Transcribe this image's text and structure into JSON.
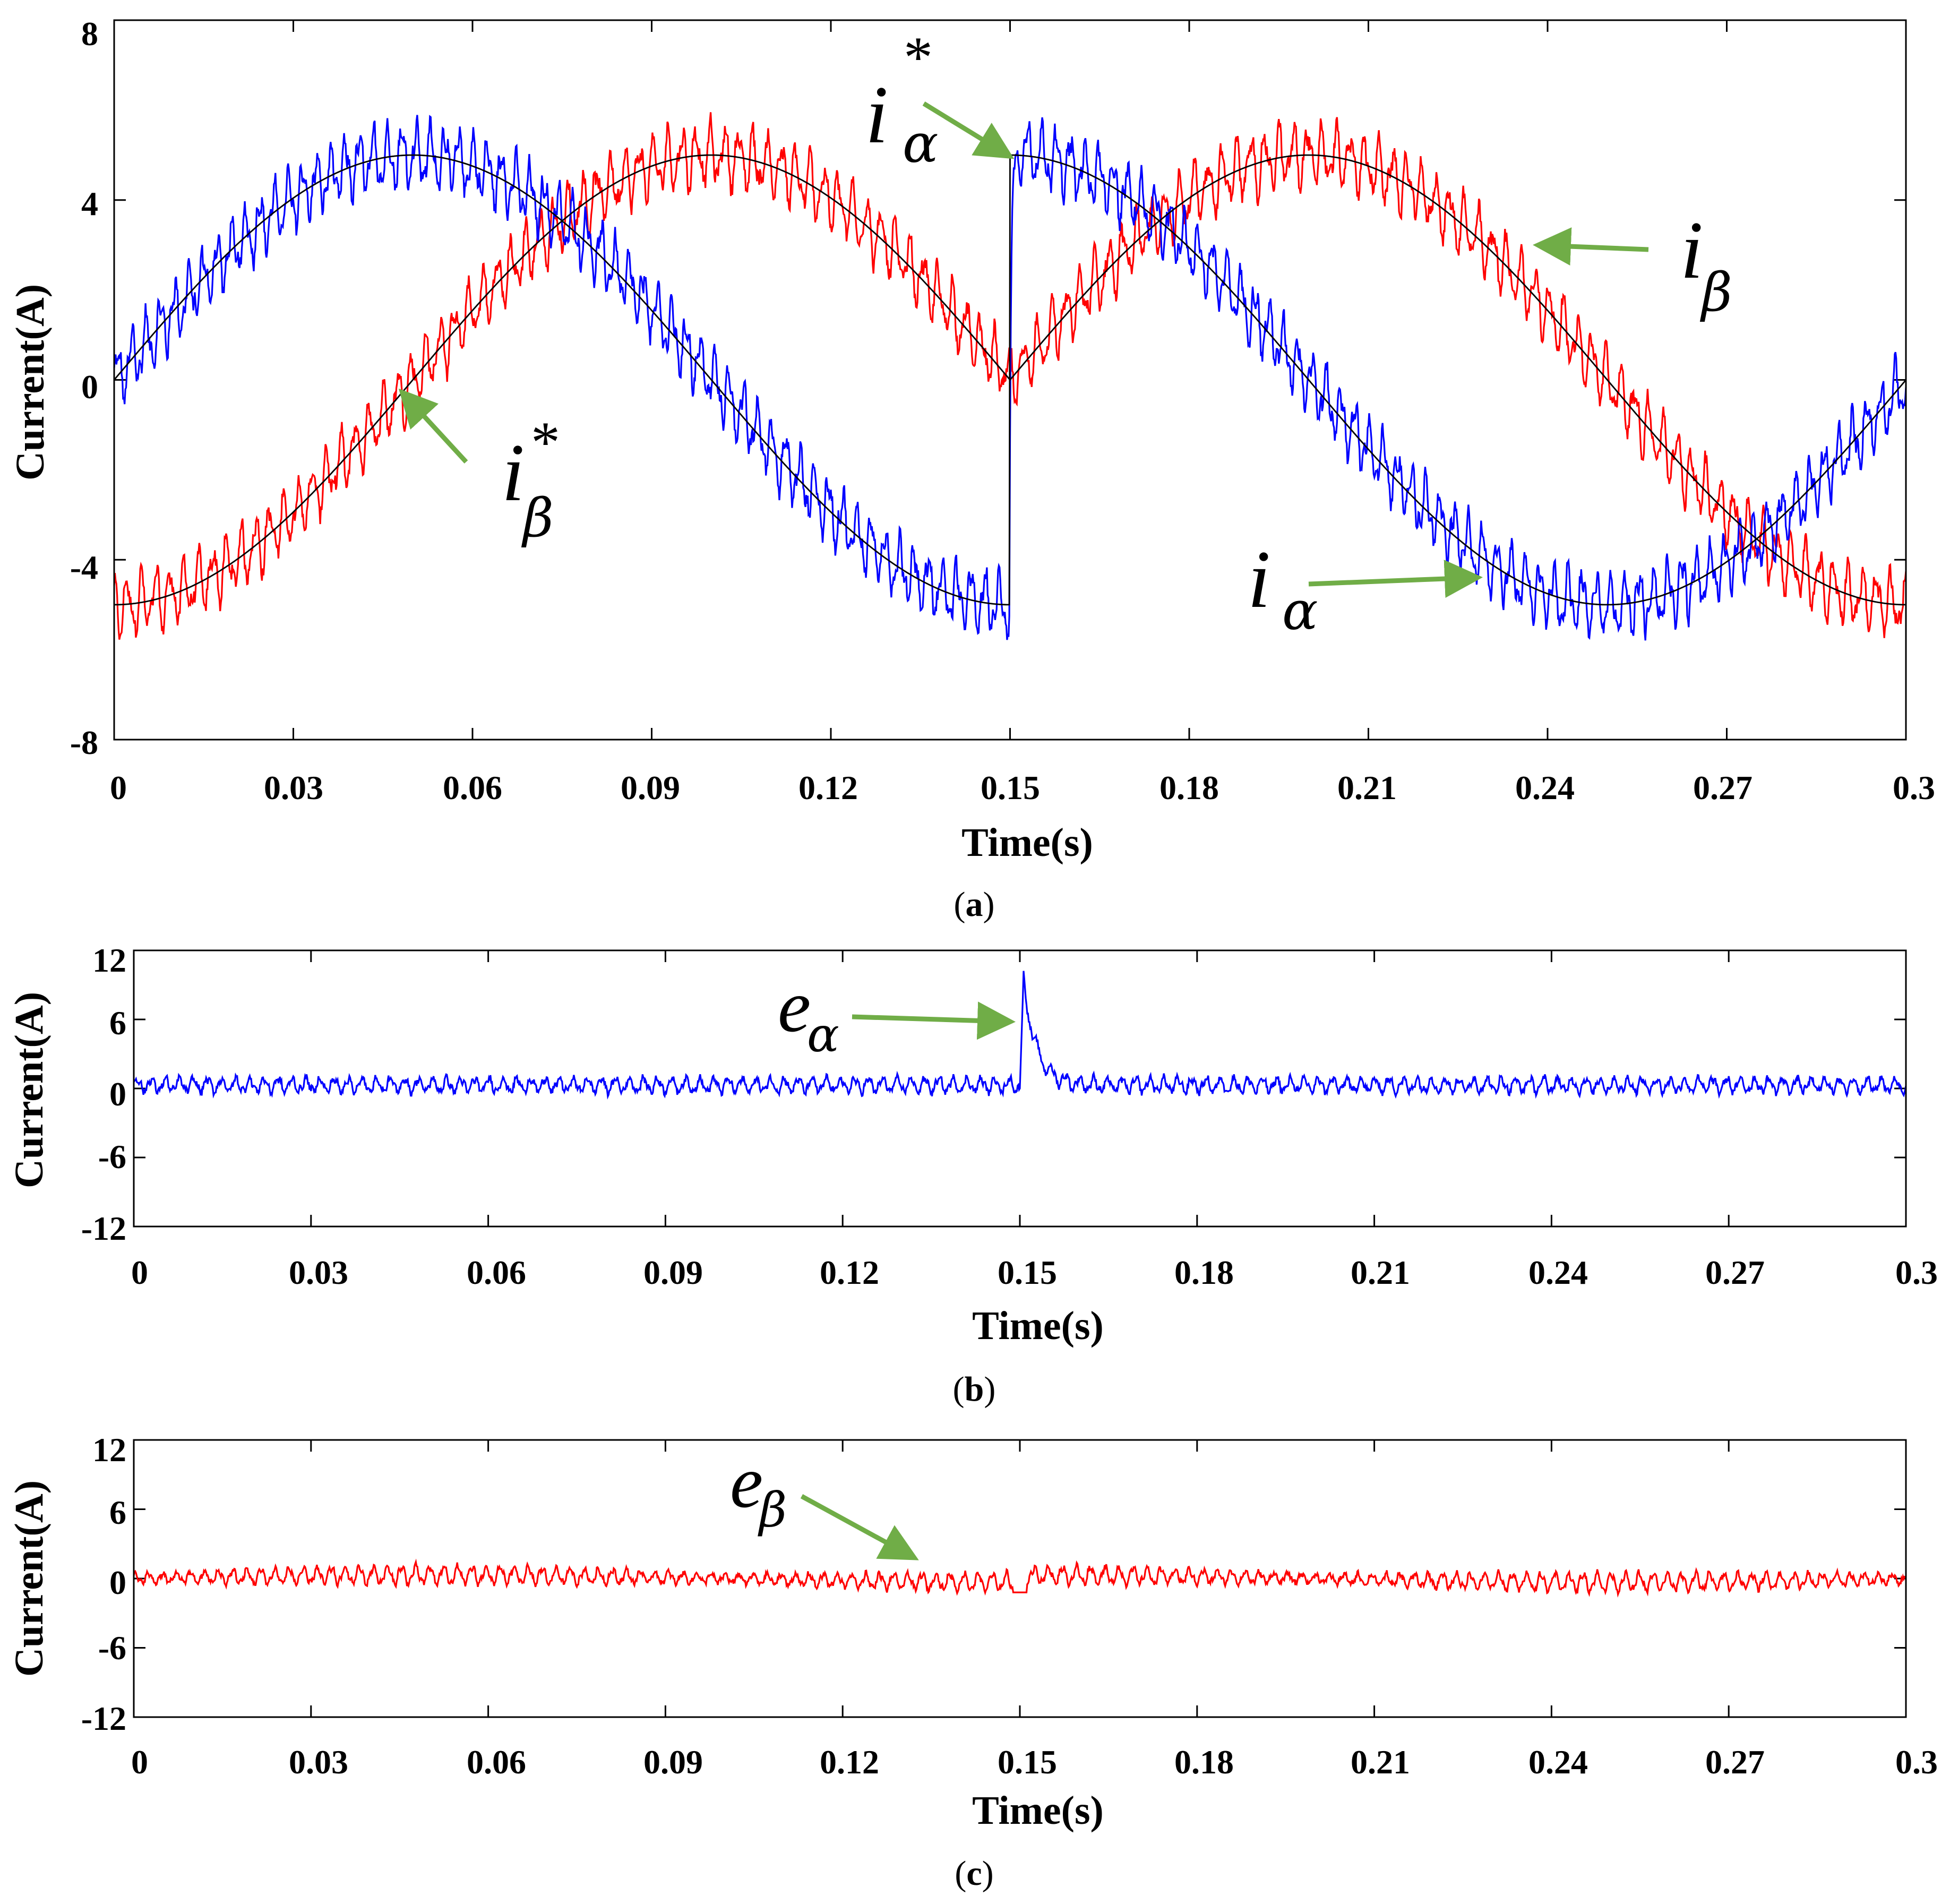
{
  "figure": {
    "panels": [
      {
        "caption_open": "(",
        "caption_letter": "a",
        "caption_close": ")"
      },
      {
        "caption_open": "(",
        "caption_letter": "b",
        "caption_close": ")"
      },
      {
        "caption_open": "(",
        "caption_letter": "c",
        "caption_close": ")"
      }
    ]
  },
  "colors": {
    "alpha": "#0000ff",
    "beta": "#ff0000",
    "reference": "#000000",
    "arrow": "#70ad47"
  },
  "chart_data": [
    {
      "type": "line",
      "title": "",
      "xlabel": "Time(s)",
      "ylabel": "Current(A)",
      "xlim": [
        0,
        0.3
      ],
      "ylim": [
        -8,
        8
      ],
      "xticks": [
        "0",
        "0.03",
        "0.06",
        "0.09",
        "0.12",
        "0.15",
        "0.18",
        "0.21",
        "0.24",
        "0.27",
        "0.3"
      ],
      "yticks": [
        "8",
        "4",
        "0",
        "-4",
        "-8"
      ],
      "signal": {
        "frequency_hz": 5,
        "amplitude_a": 5,
        "step_time_s": 0.15,
        "ripple_frequency_hz": 420
      },
      "series": [
        {
          "name": "i_alpha*",
          "label_main": "i",
          "label_sub": "α",
          "label_sup": "*",
          "color": "#000000",
          "description": "reference, 5 sin(2π·5t); sign inverts at t = 0.15 s (step from -5 to +5)"
        },
        {
          "name": "i_beta*",
          "label_main": "i",
          "label_sub": "β",
          "label_sup": "*",
          "color": "#000000",
          "description": "reference, |5 sin(2π·5t)| style, -5 at t=0, 5 at t=0.1, 0 at t=0.15, 5 at t=0.2, -5 at t=0.3"
        },
        {
          "name": "i_alpha",
          "label_main": "i",
          "label_sub": "α",
          "color": "#0000ff",
          "description": "measured current tracking i_alpha* with ripple about ±0.7 A"
        },
        {
          "name": "i_beta",
          "label_main": "i",
          "label_sub": "β",
          "color": "#ff0000",
          "description": "measured current tracking i_beta* with ripple about ±0.7 A"
        }
      ],
      "key_points": [
        {
          "t": 0,
          "i_alpha_ref": 0,
          "i_beta_ref": -5
        },
        {
          "t": 0.05,
          "i_alpha_ref": 5,
          "i_beta_ref": 0
        },
        {
          "t": 0.1,
          "i_alpha_ref": 0,
          "i_beta_ref": 5
        },
        {
          "t": 0.15,
          "i_alpha_ref": -5,
          "i_beta_ref": 0
        },
        {
          "t": 0.15,
          "i_alpha_ref": 5,
          "i_beta_ref": 0
        },
        {
          "t": 0.2,
          "i_alpha_ref": 0,
          "i_beta_ref": 5
        },
        {
          "t": 0.25,
          "i_alpha_ref": -5,
          "i_beta_ref": 0
        },
        {
          "t": 0.3,
          "i_alpha_ref": 0,
          "i_beta_ref": -5
        }
      ]
    },
    {
      "type": "line",
      "title": "",
      "xlabel": "Time(s)",
      "ylabel": "Current(A)",
      "xlim": [
        0,
        0.3
      ],
      "ylim": [
        -12,
        12
      ],
      "xticks": [
        "0",
        "0.03",
        "0.06",
        "0.09",
        "0.12",
        "0.15",
        "0.18",
        "0.21",
        "0.24",
        "0.27",
        "0.3"
      ],
      "yticks": [
        "12",
        "6",
        "0",
        "-6",
        "-12"
      ],
      "signal": {
        "peak_value_a": 9.5,
        "peak_time_s": 0.1505,
        "ripple_amplitude_a": 0.9
      },
      "series": [
        {
          "name": "e_alpha",
          "label_main": "e",
          "label_sub": "α",
          "color": "#0000ff",
          "description": "tracking error of alpha current, near 0 with ripple, spike to ~9.5 A at t = 0.15 s"
        }
      ]
    },
    {
      "type": "line",
      "title": "",
      "xlabel": "Time(s)",
      "ylabel": "Current(A)",
      "xlim": [
        0,
        0.3
      ],
      "ylim": [
        -12,
        12
      ],
      "xticks": [
        "0",
        "0.03",
        "0.06",
        "0.09",
        "0.12",
        "0.15",
        "0.18",
        "0.21",
        "0.24",
        "0.27",
        "0.3"
      ],
      "yticks": [
        "12",
        "6",
        "0",
        "-6",
        "-12"
      ],
      "signal": {
        "ripple_amplitude_a": 1.0,
        "dip_time_s": 0.15,
        "dip_value_a": -1.2
      },
      "series": [
        {
          "name": "e_beta",
          "label_main": "e",
          "label_sub": "β",
          "color": "#ff0000",
          "description": "tracking error of beta current, near 0 with ripple about ±1 A"
        }
      ]
    }
  ]
}
